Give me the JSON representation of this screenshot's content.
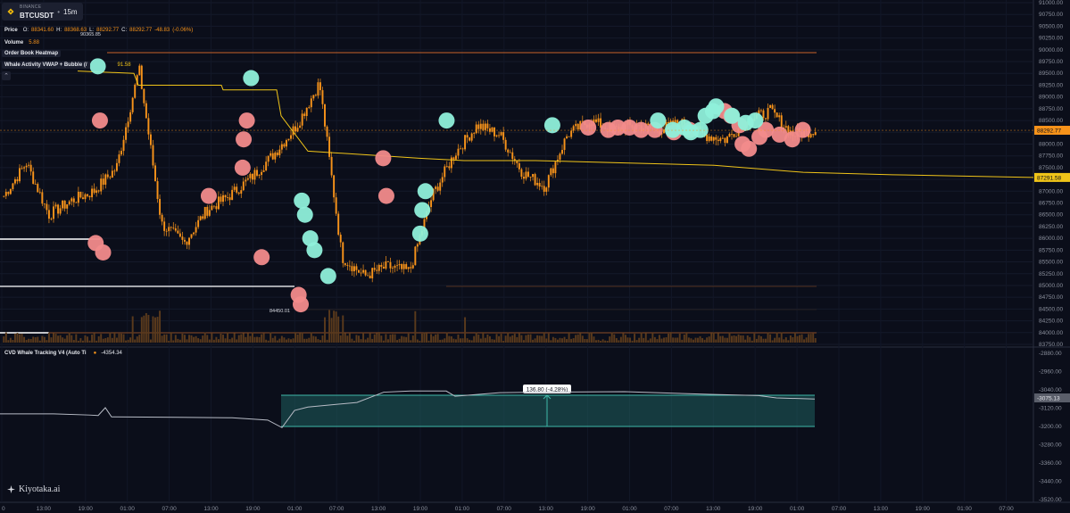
{
  "symbol": {
    "exchange": "BINANCE",
    "pair": "BTCUSDT",
    "timeframe": "15m"
  },
  "legend": {
    "price": {
      "label": "Price",
      "o_key": "O:",
      "o": "88341.60",
      "h_key": "H:",
      "h": "88368.63",
      "l_key": "L:",
      "l": "88292.77",
      "c_key": "C:",
      "c": "88292.77",
      "change": "-48.83",
      "change_pct": "(-0.06%)"
    },
    "volume": {
      "label": "Volume",
      "value": "5.88"
    },
    "heatmap": {
      "label": "Order Book Heatmap"
    },
    "whale": {
      "label": "Whale Activity VWAP + Bubble (/",
      "value": "91.58"
    }
  },
  "collapse_glyph": "⌃",
  "cvd": {
    "label": "CVD Whale Tracking V4 (Auto Ti",
    "value": "-4354.34"
  },
  "price_axis": {
    "ticks": [
      "91000.00",
      "90750.00",
      "90500.00",
      "90250.00",
      "90000.00",
      "89750.00",
      "89500.00",
      "89250.00",
      "89000.00",
      "88750.00",
      "88500.00",
      "88250.00",
      "88000.00",
      "87750.00",
      "87500.00",
      "87250.00",
      "87000.00",
      "86750.00",
      "86500.00",
      "86250.00",
      "86000.00",
      "85750.00",
      "85500.00",
      "85250.00",
      "85000.00",
      "84750.00",
      "84500.00",
      "84250.00",
      "84000.00",
      "83750.00"
    ],
    "min": 83750,
    "max": 91000,
    "current_price": {
      "value": 88292.77,
      "label": "88292.77",
      "color": "#f7931a"
    },
    "vwap_price": {
      "value": 87291.58,
      "label": "87291.58",
      "color": "#f0c419"
    }
  },
  "cvd_axis": {
    "ticks": [
      "-2880.00",
      "-2960.00",
      "-3040.00",
      "-3120.00",
      "-3200.00",
      "-3280.00",
      "-3360.00",
      "-3440.00",
      "-3520.00"
    ],
    "min": -3520,
    "max": -2880,
    "current": {
      "value": -3075.13,
      "label": "-3075.13"
    }
  },
  "time_axis": {
    "labels": [
      "0",
      "13:00",
      "19:00",
      "01:00",
      "07:00",
      "13:00",
      "19:00",
      "01:00",
      "07:00",
      "13:00",
      "19:00",
      "01:00",
      "07:00",
      "13:00",
      "19:00",
      "01:00",
      "07:00",
      "13:00",
      "19:00",
      "01:00",
      "07:00",
      "13:00",
      "19:00",
      "01:00",
      "07:00"
    ]
  },
  "annotations": {
    "high_label": "90365.85",
    "low_label": "84450.01",
    "measure_label": "136.80 (-4.28%)"
  },
  "watermark": "Kiyotaka.ai",
  "colors": {
    "background": "#0b0e1a",
    "candles": "#f7931a",
    "vwap_line": "#f0c419",
    "bubble_buy": "#8ff0da",
    "bubble_sell": "#f28b8b",
    "cvd_line": "#b8bcc6",
    "measure_box": "#1f5f5e"
  },
  "chart_data": [
    {
      "type": "line",
      "series": [
        {
          "values": [
            86900,
            87600,
            86500,
            86800,
            87000,
            87500,
            89600,
            86300,
            85900,
            86600,
            86900,
            87300,
            87800,
            88400,
            89300,
            85600,
            85200,
            85400,
            85300,
            86900,
            87800,
            88400,
            88200,
            87400,
            87100,
            88200,
            88500,
            88300,
            88400,
            88300,
            88450,
            88200,
            88100,
            88500,
            88700,
            88200,
            88300
          ]
        }
      ],
      "bubbles": {
        "buy": [
          [
            90,
            89650
          ],
          [
            235,
            89400
          ],
          [
            283,
            86800
          ],
          [
            286,
            86500
          ],
          [
            291,
            86000
          ],
          [
            295,
            85750
          ],
          [
            308,
            85200
          ],
          [
            395,
            86100
          ],
          [
            397,
            86600
          ],
          [
            400,
            87000
          ],
          [
            420,
            88500
          ],
          [
            520,
            88400
          ],
          [
            620,
            88500
          ],
          [
            634,
            88300
          ],
          [
            645,
            88350
          ],
          [
            651,
            88250
          ],
          [
            660,
            88300
          ],
          [
            665,
            88600
          ],
          [
            672,
            88700
          ],
          [
            675,
            88800
          ],
          [
            690,
            88600
          ],
          [
            703,
            88450
          ],
          [
            712,
            88500
          ]
        ],
        "sell": [
          [
            92,
            88500
          ],
          [
            88,
            85900
          ],
          [
            95,
            85700
          ],
          [
            195,
            86900
          ],
          [
            227,
            87500
          ],
          [
            228,
            88100
          ],
          [
            231,
            88500
          ],
          [
            245,
            85600
          ],
          [
            280,
            84800
          ],
          [
            282,
            84600
          ],
          [
            360,
            87700
          ],
          [
            363,
            86900
          ],
          [
            554,
            88350
          ],
          [
            573,
            88300
          ],
          [
            582,
            88350
          ],
          [
            593,
            88350
          ],
          [
            604,
            88300
          ],
          [
            617,
            88300
          ],
          [
            635,
            88250
          ],
          [
            650,
            88300
          ],
          [
            683,
            88700
          ],
          [
            689,
            88600
          ],
          [
            697,
            88400
          ],
          [
            700,
            88000
          ],
          [
            706,
            87900
          ],
          [
            716,
            88150
          ],
          [
            722,
            88300
          ],
          [
            735,
            88200
          ],
          [
            747,
            88100
          ],
          [
            757,
            88300
          ]
        ]
      },
      "ylim": [
        83750,
        91000
      ]
    },
    {
      "type": "line",
      "series": [
        {
          "values": [
            -3145,
            -3145,
            -3150,
            -3152,
            -3118,
            -3158,
            -3160,
            -3162,
            -3172,
            -3205,
            -3130,
            -3115,
            -3095,
            -3050,
            -3045,
            -3045,
            -3068,
            -3052,
            -3050,
            -3048,
            -3060,
            -3065,
            -3075,
            -3080
          ]
        }
      ],
      "ylim": [
        -3520,
        -2880
      ]
    }
  ]
}
